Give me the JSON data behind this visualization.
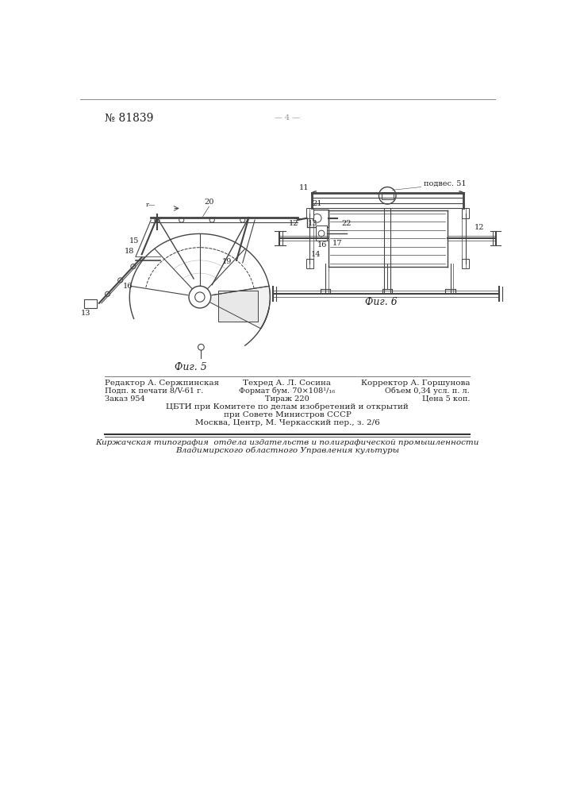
{
  "page_number": "№ 81839",
  "background_color": "#ffffff",
  "line_color": "#444444",
  "text_color": "#222222",
  "fig5_label": "Фиг. 5",
  "fig6_label": "Фиг. 6",
  "center_header": "— 4 —",
  "footer_col1": [
    "Редактор А. Сержпинская",
    "Подп. к печати 8/V-61 г.",
    "Заказ 954"
  ],
  "footer_col2": [
    "Техред А. Л. Сосина",
    "Формат бум. 70×108¹/₁₆",
    "Тираж 220"
  ],
  "footer_col3": [
    "Корректор А. Горшунова",
    "Объем 0,34 усл. п. л.",
    "Цена 5 коп."
  ],
  "footer_center": [
    "ЦБТИ при Комитете по делам изобретений и открытий",
    "при Совете Министров СССР",
    "Москва, Центр, М. Черкасский пер., з. 2/6"
  ],
  "footer_print1": "Киржачская типография  отдела издательств и полиграфической промышленности",
  "footer_print2": "Владимирского областного Управления культуры"
}
